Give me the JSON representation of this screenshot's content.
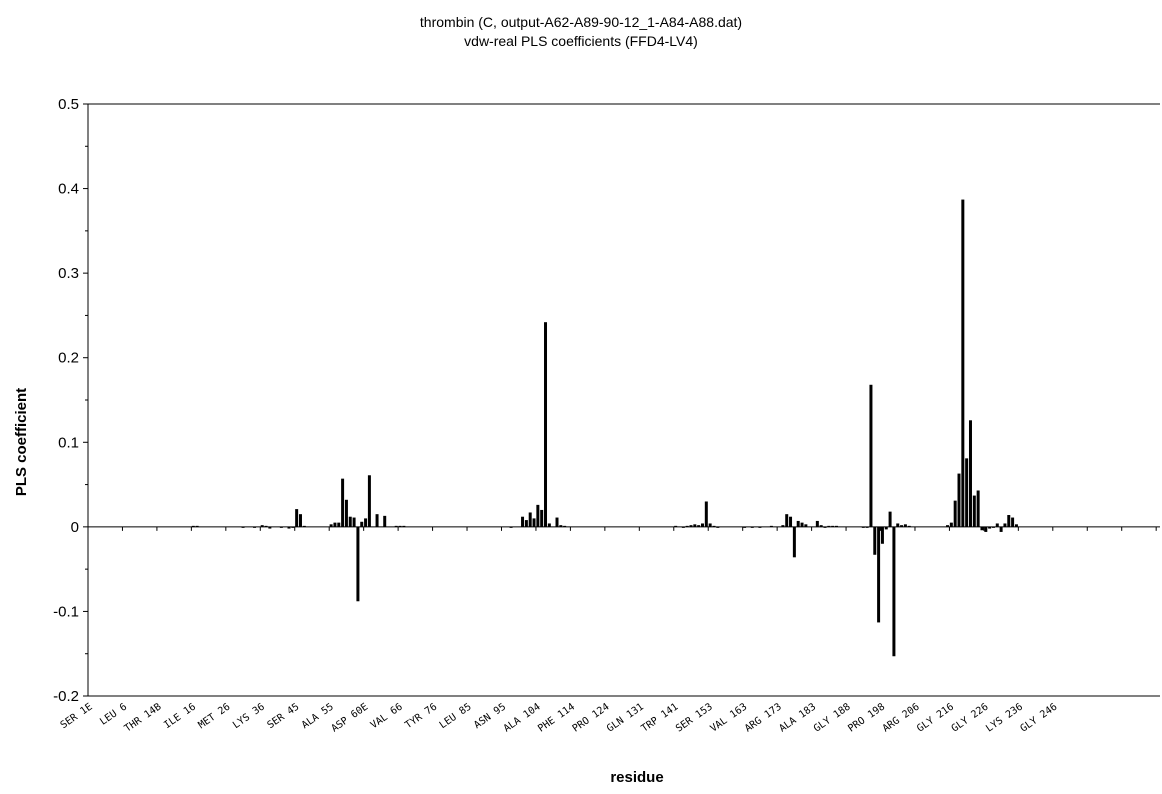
{
  "chart_data": {
    "type": "bar",
    "title": "thrombin (C, output-A62-A89-90-12_1-A84-A88.dat)",
    "subtitle": "vdw-real PLS coefficients (FFD4-LV4)",
    "xlabel": "residue",
    "ylabel": "PLS coefficient",
    "ylim": [
      -0.2,
      0.5
    ],
    "yticks": [
      -0.2,
      -0.1,
      0,
      0.1,
      0.2,
      0.3,
      0.4,
      0.5
    ],
    "ytick_labels": [
      "-0.2",
      "-0.1",
      "0",
      "0.1",
      "0.2",
      "0.3",
      "0.4",
      "0.5"
    ],
    "grid": false,
    "legend": "none",
    "bar_color": "#000000",
    "n_positions": 280,
    "x_tick_labels": [
      {
        "label": "SER 1E",
        "index": 0
      },
      {
        "label": "LEU 6",
        "index": 9
      },
      {
        "label": "THR 14B",
        "index": 18
      },
      {
        "label": "ILE 16",
        "index": 27
      },
      {
        "label": "MET 26",
        "index": 36
      },
      {
        "label": "LYS 36",
        "index": 45
      },
      {
        "label": "SER 45",
        "index": 54
      },
      {
        "label": "ALA 55",
        "index": 63
      },
      {
        "label": "ASP 60E",
        "index": 72
      },
      {
        "label": "VAL 66",
        "index": 81
      },
      {
        "label": "TYR 76",
        "index": 90
      },
      {
        "label": "LEU 85",
        "index": 99
      },
      {
        "label": "ASN 95",
        "index": 108
      },
      {
        "label": "ALA 104",
        "index": 117
      },
      {
        "label": "PHE 114",
        "index": 126
      },
      {
        "label": "PRO 124",
        "index": 135
      },
      {
        "label": "GLN 131",
        "index": 144
      },
      {
        "label": "TRP 141",
        "index": 153
      },
      {
        "label": "SER 153",
        "index": 162
      },
      {
        "label": "VAL 163",
        "index": 171
      },
      {
        "label": "ARG 173",
        "index": 180
      },
      {
        "label": "ALA 183",
        "index": 189
      },
      {
        "label": "GLY 188",
        "index": 198
      },
      {
        "label": "PRO 198",
        "index": 207
      },
      {
        "label": "ARG 206",
        "index": 216
      },
      {
        "label": "GLY 216",
        "index": 225
      },
      {
        "label": "GLY 226",
        "index": 234
      },
      {
        "label": "LYS 236",
        "index": 243
      },
      {
        "label": "GLY 246",
        "index": 252
      }
    ],
    "bars": [
      {
        "index": 27,
        "value": 0.001
      },
      {
        "index": 28,
        "value": 0.001
      },
      {
        "index": 40,
        "value": -0.001
      },
      {
        "index": 43,
        "value": -0.001
      },
      {
        "index": 45,
        "value": 0.002
      },
      {
        "index": 46,
        "value": 0.001
      },
      {
        "index": 47,
        "value": -0.002
      },
      {
        "index": 50,
        "value": -0.001
      },
      {
        "index": 52,
        "value": -0.002
      },
      {
        "index": 53,
        "value": -0.001
      },
      {
        "index": 54,
        "value": 0.021
      },
      {
        "index": 55,
        "value": 0.015
      },
      {
        "index": 56,
        "value": 0.001
      },
      {
        "index": 63,
        "value": 0.003
      },
      {
        "index": 64,
        "value": 0.005
      },
      {
        "index": 65,
        "value": 0.005
      },
      {
        "index": 66,
        "value": 0.057
      },
      {
        "index": 67,
        "value": 0.032
      },
      {
        "index": 68,
        "value": 0.012
      },
      {
        "index": 69,
        "value": 0.011
      },
      {
        "index": 70,
        "value": -0.088
      },
      {
        "index": 71,
        "value": 0.006
      },
      {
        "index": 72,
        "value": 0.01
      },
      {
        "index": 73,
        "value": 0.061
      },
      {
        "index": 75,
        "value": 0.015
      },
      {
        "index": 77,
        "value": 0.013
      },
      {
        "index": 80,
        "value": 0.001
      },
      {
        "index": 81,
        "value": 0.001
      },
      {
        "index": 82,
        "value": 0.001
      },
      {
        "index": 110,
        "value": -0.001
      },
      {
        "index": 113,
        "value": 0.012
      },
      {
        "index": 114,
        "value": 0.008
      },
      {
        "index": 115,
        "value": 0.017
      },
      {
        "index": 116,
        "value": 0.01
      },
      {
        "index": 117,
        "value": 0.026
      },
      {
        "index": 118,
        "value": 0.02
      },
      {
        "index": 119,
        "value": 0.242
      },
      {
        "index": 120,
        "value": 0.004
      },
      {
        "index": 122,
        "value": 0.011
      },
      {
        "index": 123,
        "value": 0.002
      },
      {
        "index": 124,
        "value": 0.001
      },
      {
        "index": 153,
        "value": 0.001
      },
      {
        "index": 155,
        "value": -0.001
      },
      {
        "index": 156,
        "value": 0.001
      },
      {
        "index": 157,
        "value": 0.002
      },
      {
        "index": 158,
        "value": 0.003
      },
      {
        "index": 159,
        "value": 0.002
      },
      {
        "index": 160,
        "value": 0.004
      },
      {
        "index": 161,
        "value": 0.03
      },
      {
        "index": 162,
        "value": 0.004
      },
      {
        "index": 163,
        "value": 0.001
      },
      {
        "index": 164,
        "value": -0.001
      },
      {
        "index": 171,
        "value": -0.001
      },
      {
        "index": 173,
        "value": -0.001
      },
      {
        "index": 175,
        "value": -0.001
      },
      {
        "index": 178,
        "value": 0.001
      },
      {
        "index": 181,
        "value": 0.002
      },
      {
        "index": 182,
        "value": 0.015
      },
      {
        "index": 183,
        "value": 0.012
      },
      {
        "index": 184,
        "value": -0.036
      },
      {
        "index": 185,
        "value": 0.007
      },
      {
        "index": 186,
        "value": 0.005
      },
      {
        "index": 187,
        "value": 0.003
      },
      {
        "index": 190,
        "value": 0.007
      },
      {
        "index": 191,
        "value": 0.002
      },
      {
        "index": 192,
        "value": -0.001
      },
      {
        "index": 193,
        "value": 0.001
      },
      {
        "index": 194,
        "value": 0.001
      },
      {
        "index": 195,
        "value": 0.001
      },
      {
        "index": 202,
        "value": -0.001
      },
      {
        "index": 203,
        "value": -0.001
      },
      {
        "index": 204,
        "value": 0.168
      },
      {
        "index": 205,
        "value": -0.033
      },
      {
        "index": 206,
        "value": -0.113
      },
      {
        "index": 207,
        "value": -0.02
      },
      {
        "index": 208,
        "value": -0.003
      },
      {
        "index": 209,
        "value": 0.018
      },
      {
        "index": 210,
        "value": -0.153
      },
      {
        "index": 211,
        "value": 0.004
      },
      {
        "index": 212,
        "value": 0.002
      },
      {
        "index": 213,
        "value": 0.003
      },
      {
        "index": 214,
        "value": 0.001
      },
      {
        "index": 224,
        "value": 0.002
      },
      {
        "index": 225,
        "value": 0.005
      },
      {
        "index": 226,
        "value": 0.031
      },
      {
        "index": 227,
        "value": 0.063
      },
      {
        "index": 228,
        "value": 0.387
      },
      {
        "index": 229,
        "value": 0.081
      },
      {
        "index": 230,
        "value": 0.126
      },
      {
        "index": 231,
        "value": 0.037
      },
      {
        "index": 232,
        "value": 0.043
      },
      {
        "index": 233,
        "value": -0.004
      },
      {
        "index": 234,
        "value": -0.006
      },
      {
        "index": 235,
        "value": -0.002
      },
      {
        "index": 236,
        "value": -0.001
      },
      {
        "index": 237,
        "value": 0.004
      },
      {
        "index": 238,
        "value": -0.006
      },
      {
        "index": 239,
        "value": 0.004
      },
      {
        "index": 240,
        "value": 0.014
      },
      {
        "index": 241,
        "value": 0.011
      },
      {
        "index": 242,
        "value": 0.003
      }
    ]
  }
}
